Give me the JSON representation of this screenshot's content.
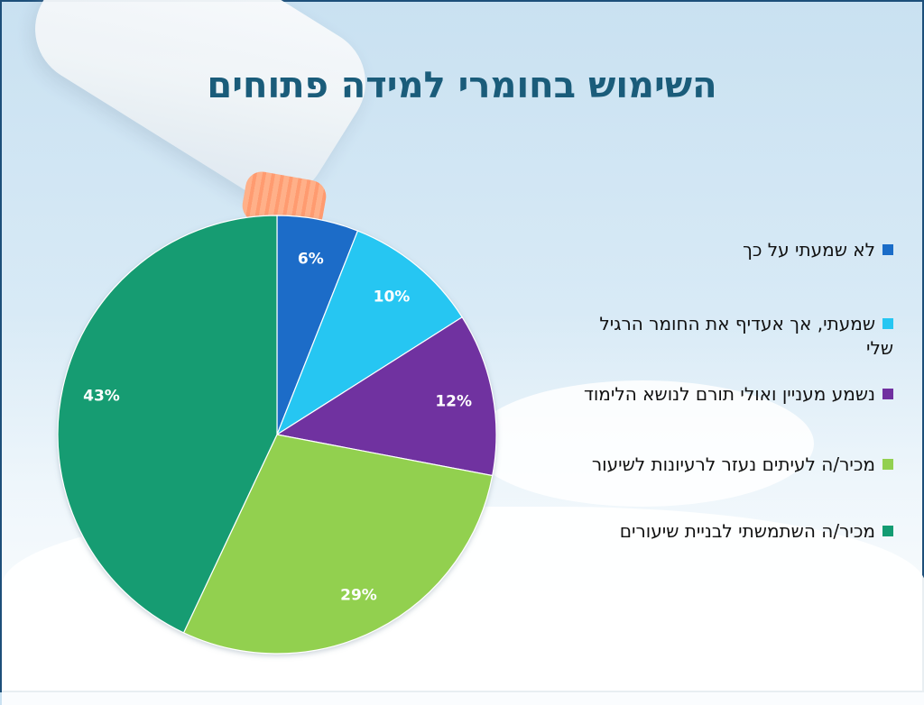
{
  "slide": {
    "title": "השימוש בחומרי למידה פתוחים"
  },
  "chart_data": {
    "type": "pie",
    "title": "השימוש בחומרי למידה פתוחים",
    "categories": [
      "לא שמעתי על כך",
      "שמעתי, אך אעדיף את החומר הרגיל שלי",
      "נשמע מעניין ואולי תורם לנושא הלימוד",
      "מכיר/ה לעיתים נעזר לרעיונות לשיעור",
      "מכיר/ה השתמשתי לבניית שיעורים"
    ],
    "values": [
      6,
      10,
      12,
      29,
      43
    ],
    "labels": [
      "6%",
      "10%",
      "12%",
      "29%",
      "43%"
    ],
    "colors": [
      "#1a6cc8",
      "#26c6f2",
      "#7030a0",
      "#92d050",
      "#139c72"
    ],
    "legend_position": "right"
  }
}
